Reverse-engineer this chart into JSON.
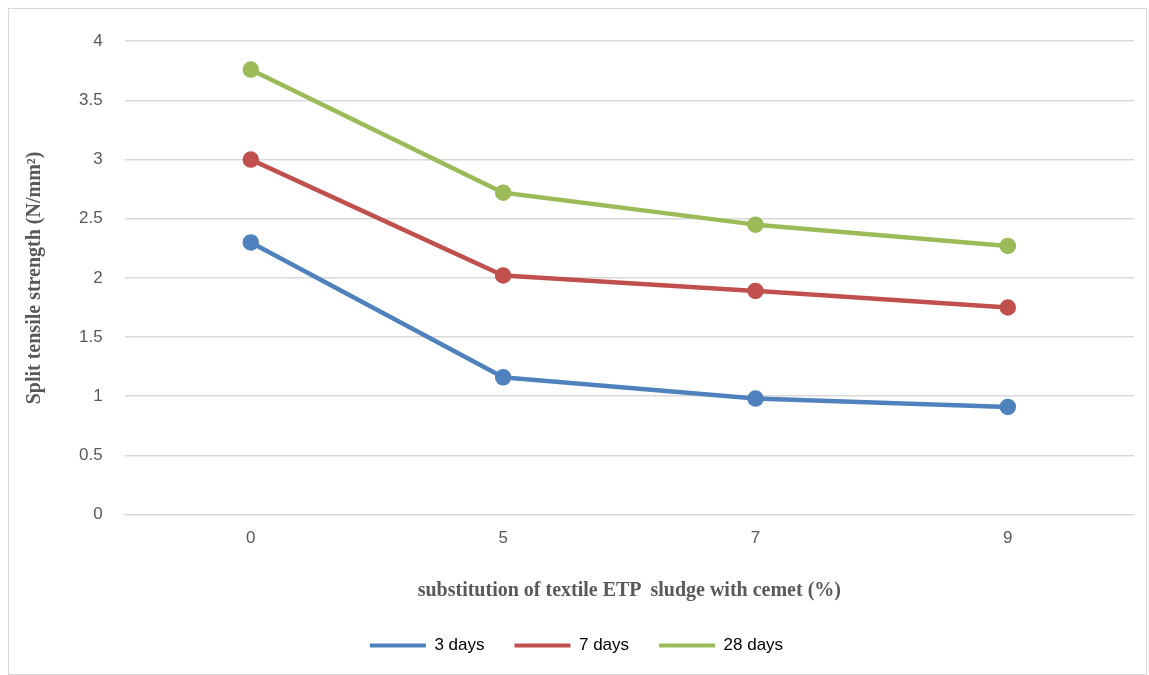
{
  "chart_data": {
    "type": "line",
    "xlabel": "substitution of textile ETP  sludge with cemet (%)",
    "ylabel": "Split tensile strength (N/mm²)",
    "categories": [
      "0",
      "5",
      "7",
      "9"
    ],
    "series": [
      {
        "name": "3 days",
        "color": "#4f81bd",
        "values": [
          2.3,
          1.16,
          0.98,
          0.91
        ]
      },
      {
        "name": "7 days",
        "color": "#c0504d",
        "values": [
          3.0,
          2.02,
          1.89,
          1.75
        ]
      },
      {
        "name": "28 days",
        "color": "#9bbb59",
        "values": [
          3.76,
          2.72,
          2.45,
          2.27
        ]
      }
    ],
    "ylim": [
      0,
      4
    ],
    "yticks": [
      0,
      0.5,
      1,
      1.5,
      2,
      2.5,
      3,
      3.5,
      4
    ],
    "grid": "y",
    "legend": "bottom",
    "marker": "circle",
    "line_style": "solid"
  }
}
